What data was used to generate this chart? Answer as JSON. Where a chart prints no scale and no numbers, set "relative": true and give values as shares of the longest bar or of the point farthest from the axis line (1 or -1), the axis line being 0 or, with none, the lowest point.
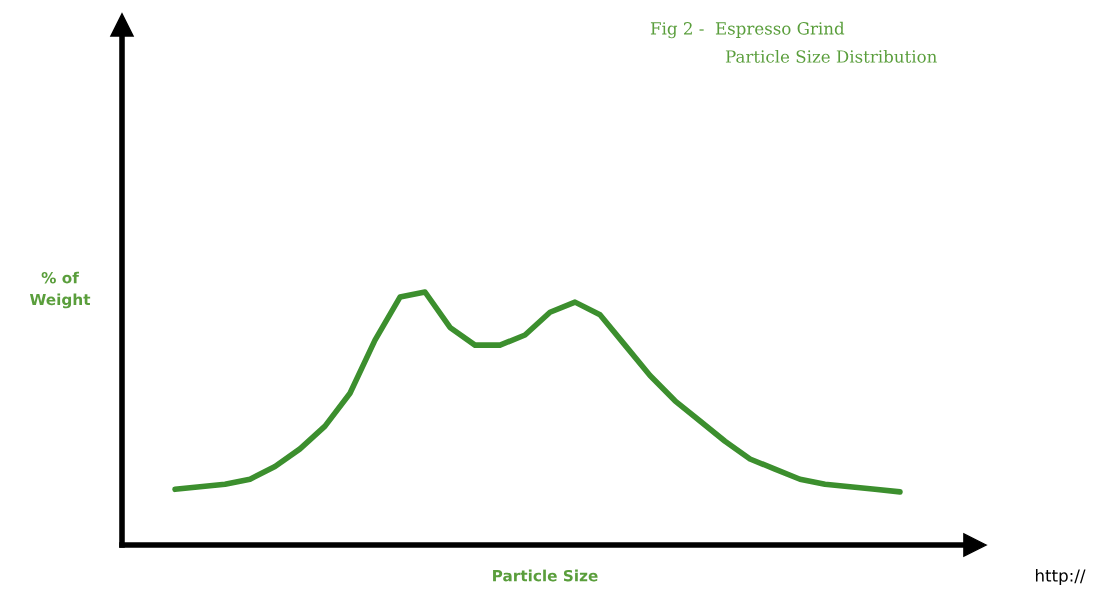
{
  "chart_data": {
    "type": "line",
    "relative": true,
    "title": "Fig 2 -  Espresso Grind",
    "subtitle": "Particle Size Distribution",
    "xlabel": "Particle Size",
    "ylabel": "% of\nWeight",
    "annotations": [
      "http://"
    ],
    "categories": [
      null,
      null,
      null,
      null,
      null,
      null,
      null,
      null,
      null,
      null,
      null,
      null,
      null,
      null,
      null,
      null,
      null,
      null,
      null,
      null,
      null,
      null,
      null,
      null,
      null,
      null,
      null,
      null,
      null,
      null
    ],
    "series": [
      {
        "color": "#3c8f2e",
        "values": [
          0.22,
          0.23,
          0.24,
          0.26,
          0.31,
          0.38,
          0.47,
          0.6,
          0.81,
          0.98,
          1,
          0.86,
          0.79,
          0.79,
          0.83,
          0.92,
          0.96,
          0.91,
          0.79,
          0.67,
          0.57,
          0.49,
          0.41,
          0.34,
          0.3,
          0.26,
          0.24,
          0.23,
          0.22,
          0.21
        ]
      }
    ],
    "marker": "none",
    "line_style": "solid"
  }
}
